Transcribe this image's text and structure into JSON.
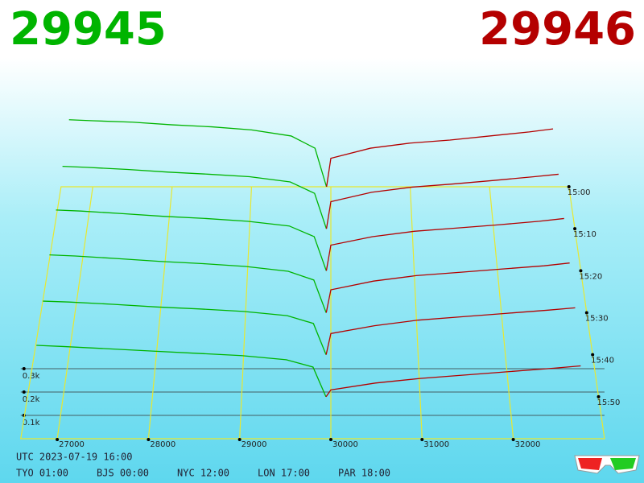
{
  "chart_data": {
    "type": "depth3d",
    "bid": 29945,
    "ask": 29946,
    "bid_color": "#00b400",
    "ask_color": "#b40000",
    "xticks": [
      27000,
      28000,
      29000,
      30000,
      31000,
      32000
    ],
    "xlim": [
      26600,
      33000
    ],
    "yticks": [
      {
        "value": 100,
        "label": "0.1k"
      },
      {
        "value": 200,
        "label": "0.2k"
      },
      {
        "value": 300,
        "label": "0.3k"
      }
    ],
    "time_labels": [
      "15:00",
      "15:10",
      "15:20",
      "15:30",
      "15:40",
      "15:50"
    ],
    "bid_x": [
      26700,
      27000,
      27500,
      28000,
      28500,
      29000,
      29500,
      29800,
      29945
    ],
    "ask_x": [
      29946,
      30000,
      30500,
      31000,
      31500,
      32000,
      32500,
      32800
    ],
    "snapshots": [
      {
        "bids": [
          330,
          325,
          318,
          305,
          295,
          280,
          250,
          190,
          0
        ],
        "asks": [
          0,
          140,
          190,
          215,
          230,
          250,
          270,
          285
        ]
      },
      {
        "bids": [
          300,
          295,
          285,
          272,
          262,
          250,
          225,
          170,
          0
        ],
        "asks": [
          0,
          130,
          175,
          200,
          215,
          232,
          250,
          262
        ]
      },
      {
        "bids": [
          285,
          280,
          268,
          255,
          245,
          232,
          210,
          160,
          0
        ],
        "asks": [
          0,
          120,
          160,
          185,
          200,
          215,
          232,
          245
        ]
      },
      {
        "bids": [
          265,
          260,
          248,
          235,
          225,
          212,
          190,
          150,
          0
        ],
        "asks": [
          0,
          105,
          145,
          170,
          185,
          200,
          215,
          228
        ]
      },
      {
        "bids": [
          240,
          236,
          226,
          214,
          205,
          194,
          175,
          140,
          0
        ],
        "asks": [
          0,
          95,
          130,
          155,
          170,
          185,
          200,
          210
        ]
      },
      {
        "bids": [
          225,
          220,
          210,
          200,
          190,
          180,
          162,
          130,
          0
        ],
        "asks": [
          0,
          30,
          60,
          80,
          95,
          110,
          125,
          135
        ]
      }
    ],
    "utc": "UTC 2023-07-19 16:00",
    "zones": [
      "TYO 01:00",
      "BJS 00:00",
      "NYC 12:00",
      "LON 17:00",
      "PAR 18:00"
    ]
  }
}
